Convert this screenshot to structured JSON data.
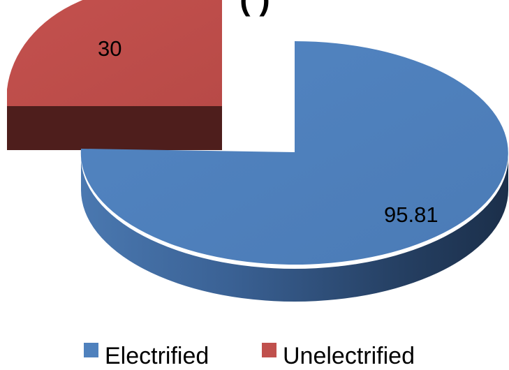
{
  "chart_data": {
    "type": "pie",
    "title_fragment": "(                )",
    "categories": [
      "Electrified",
      "Unelectrified"
    ],
    "values": [
      95.81,
      30
    ],
    "data_labels": [
      "95.81",
      "30"
    ],
    "colors": {
      "Electrified": "#4f81bd",
      "Unelectrified": "#c0504d"
    },
    "legend": {
      "placement": "bottom",
      "items": [
        {
          "label": "Electrified",
          "color": "#4f81bd"
        },
        {
          "label": "Unelectrified",
          "color": "#c0504d"
        }
      ]
    },
    "style": "3d-exploded"
  }
}
